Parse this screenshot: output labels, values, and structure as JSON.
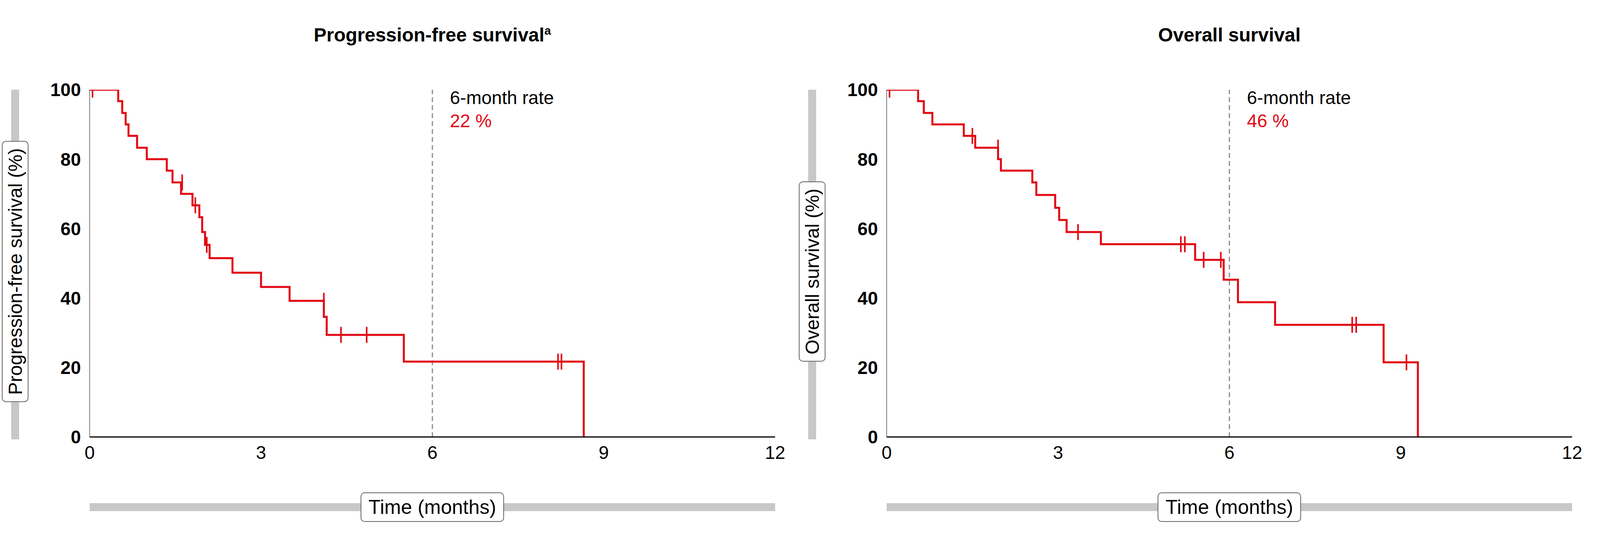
{
  "chart_data": [
    {
      "type": "line",
      "title": "Progression-free survival",
      "title_footnote": "a",
      "x_label": "Time (months)",
      "y_label": "Progression-free survival (%)",
      "xlim": [
        0,
        12
      ],
      "xticks": [
        0,
        3,
        6,
        9,
        12
      ],
      "ylim": [
        0,
        100
      ],
      "yticks": [
        0,
        20,
        40,
        60,
        80,
        100
      ],
      "grid": false,
      "color": "#e30613",
      "line_style": "step",
      "x": [
        0,
        0.5,
        0.57,
        0.63,
        0.68,
        0.83,
        1.0,
        1.35,
        1.45,
        1.6,
        1.8,
        1.92,
        1.97,
        2.02,
        2.1,
        2.5,
        3.0,
        3.5,
        4.1,
        4.15,
        5.5,
        8.65
      ],
      "values": [
        100,
        96.7,
        93.3,
        90,
        86.7,
        83.3,
        80,
        76.7,
        73.3,
        70,
        66.7,
        63.3,
        59,
        55.3,
        51.5,
        47.3,
        43.2,
        39.2,
        34.6,
        29.4,
        21.7,
        0
      ],
      "censored": {
        "marker": "vline",
        "x": [
          0.05,
          1.62,
          1.85,
          2.05,
          4.1,
          4.4,
          4.85,
          8.2,
          8.26
        ],
        "values": [
          100,
          73.3,
          66.7,
          55.3,
          39.2,
          29.4,
          29.4,
          21.7,
          21.7
        ]
      },
      "annotations": [
        {
          "x": 6,
          "text": "6-month rate",
          "value_text": "22 %"
        }
      ]
    },
    {
      "type": "line",
      "title": "Overall survival",
      "x_label": "Time (months)",
      "y_label": "Overall survival (%)",
      "xlim": [
        0,
        12
      ],
      "xticks": [
        0,
        3,
        6,
        9,
        12
      ],
      "ylim": [
        0,
        100
      ],
      "yticks": [
        0,
        20,
        40,
        60,
        80,
        100
      ],
      "grid": false,
      "color": "#e30613",
      "line_style": "step",
      "x": [
        0,
        0.55,
        0.65,
        0.8,
        1.35,
        1.55,
        1.95,
        2.0,
        2.55,
        2.62,
        2.95,
        3.02,
        3.15,
        3.75,
        5.4,
        5.9,
        6.15,
        6.8,
        8.7,
        9.3
      ],
      "values": [
        100,
        96.7,
        93.3,
        90,
        86.7,
        83.3,
        80,
        76.7,
        73.3,
        69.7,
        66,
        62.5,
        59,
        55.5,
        51,
        45.3,
        38.8,
        32.3,
        21.5,
        0
      ],
      "censored": {
        "marker": "vline",
        "x": [
          0.05,
          1.5,
          1.95,
          3.35,
          5.15,
          5.22,
          5.55,
          5.85,
          8.15,
          8.22,
          9.1
        ],
        "values": [
          100,
          86.7,
          83.3,
          59,
          55.5,
          55.5,
          51,
          51,
          32.3,
          32.3,
          21.5
        ]
      },
      "annotations": [
        {
          "x": 6,
          "text": "6-month rate",
          "value_text": "46 %"
        }
      ]
    }
  ]
}
